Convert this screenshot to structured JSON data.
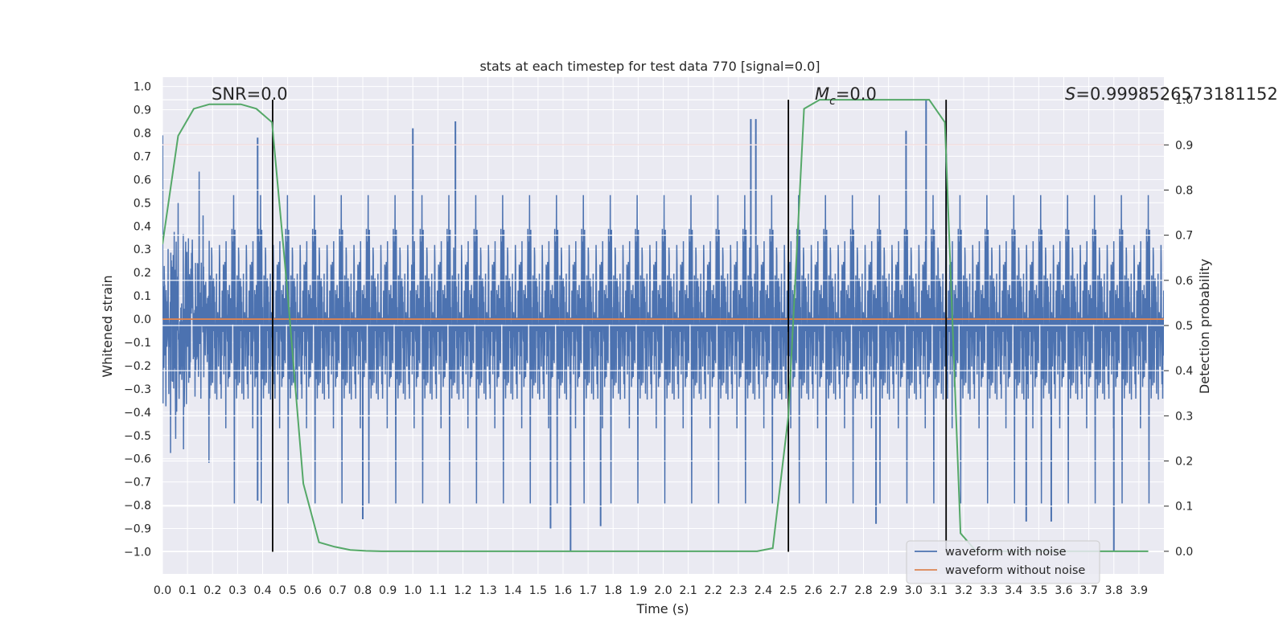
{
  "chart_data": {
    "type": "line",
    "title": "stats at each timestep for test data 770 [signal=0.0]",
    "xlabel": "Time (s)",
    "ylabel": "Whitened strain",
    "y2label": "Detection probability",
    "xlim": [
      0.0,
      4.0
    ],
    "ylim": [
      -1.095,
      1.04
    ],
    "y2lim": [
      -0.05,
      1.05
    ],
    "xticks": [
      "0.0",
      "0.1",
      "0.2",
      "0.3",
      "0.4",
      "0.5",
      "0.6",
      "0.7",
      "0.8",
      "0.9",
      "1.0",
      "1.1",
      "1.2",
      "1.3",
      "1.4",
      "1.5",
      "1.6",
      "1.7",
      "1.8",
      "1.9",
      "2.0",
      "2.1",
      "2.2",
      "2.3",
      "2.4",
      "2.5",
      "2.6",
      "2.7",
      "2.8",
      "2.9",
      "3.0",
      "3.1",
      "3.2",
      "3.3",
      "3.4",
      "3.5",
      "3.6",
      "3.7",
      "3.8",
      "3.9"
    ],
    "yticks": [
      "1.0",
      "0.9",
      "0.8",
      "0.7",
      "0.6",
      "0.5",
      "0.4",
      "0.3",
      "0.2",
      "0.1",
      "0.0",
      "−0.1",
      "−0.2",
      "−0.3",
      "−0.4",
      "−0.5",
      "−0.6",
      "−0.7",
      "−0.8",
      "−0.9",
      "−1.0"
    ],
    "y2ticks": [
      "1.0",
      "0.9",
      "0.8",
      "0.7",
      "0.6",
      "0.5",
      "0.4",
      "0.3",
      "0.2",
      "0.1",
      "0.0"
    ],
    "annotations": {
      "snr": "SNR=0.0",
      "mc_symbol": "M",
      "mc_sub": "c",
      "mc_value": "=0.0",
      "s_symbol": "S",
      "s_value": "=0.9998526573181152"
    },
    "legend": {
      "location": "lower-right",
      "entries": [
        {
          "label": "waveform with noise",
          "color": "#4c72b0"
        },
        {
          "label": "waveform without noise",
          "color": "#dd8452"
        }
      ]
    },
    "series": [
      {
        "name": "waveform with noise",
        "axis": "left",
        "color": "#4c72b0",
        "description": "whitened noise samples, roughly zero-mean, amplitude mostly within ±0.5 with spikes to ±1.0",
        "noise_std": 0.2,
        "peak_markers": [
          {
            "x": 0.0,
            "y": 0.79
          },
          {
            "x": 0.38,
            "y": 0.78
          },
          {
            "x": 1.0,
            "y": 0.82
          },
          {
            "x": 1.17,
            "y": 0.85
          },
          {
            "x": 2.35,
            "y": 0.86
          },
          {
            "x": 2.37,
            "y": 0.86
          },
          {
            "x": 2.97,
            "y": 0.81
          },
          {
            "x": 3.05,
            "y": 0.94
          },
          {
            "x": 3.13,
            "y": 0.71
          },
          {
            "x": 1.63,
            "y": -1.0
          },
          {
            "x": 1.55,
            "y": -0.9
          },
          {
            "x": 0.38,
            "y": -0.78
          },
          {
            "x": 0.8,
            "y": -0.86
          },
          {
            "x": 1.75,
            "y": -0.89
          },
          {
            "x": 2.85,
            "y": -0.88
          },
          {
            "x": 3.8,
            "y": -1.0
          },
          {
            "x": 3.45,
            "y": -0.87
          },
          {
            "x": 3.55,
            "y": -0.87
          }
        ]
      },
      {
        "name": "waveform without noise",
        "axis": "left",
        "color": "#dd8452",
        "x": [
          0.0,
          4.0
        ],
        "y": [
          0.0,
          0.0
        ]
      },
      {
        "name": "detection probability",
        "axis": "right",
        "color": "#55a868",
        "x": [
          0.0,
          0.0625,
          0.125,
          0.1875,
          0.25,
          0.3125,
          0.375,
          0.4375,
          0.5,
          0.5625,
          0.625,
          0.6875,
          0.75,
          0.8125,
          0.875,
          2.375,
          2.4375,
          2.5,
          2.5625,
          2.625,
          3.0625,
          3.125,
          3.1875,
          3.25,
          3.3125,
          3.9375
        ],
        "y": [
          0.68,
          0.92,
          0.98,
          0.99,
          0.99,
          0.99,
          0.98,
          0.95,
          0.57,
          0.15,
          0.02,
          0.01,
          0.003,
          0.001,
          0.0,
          0.0,
          0.007,
          0.3,
          0.98,
          1.0,
          1.0,
          0.95,
          0.04,
          0.0,
          0.0,
          0.0
        ]
      }
    ],
    "threshold": {
      "axis": "right",
      "value": 0.9,
      "color": "#c44e52"
    },
    "vlines": [
      0.44,
      2.5,
      3.13
    ]
  }
}
